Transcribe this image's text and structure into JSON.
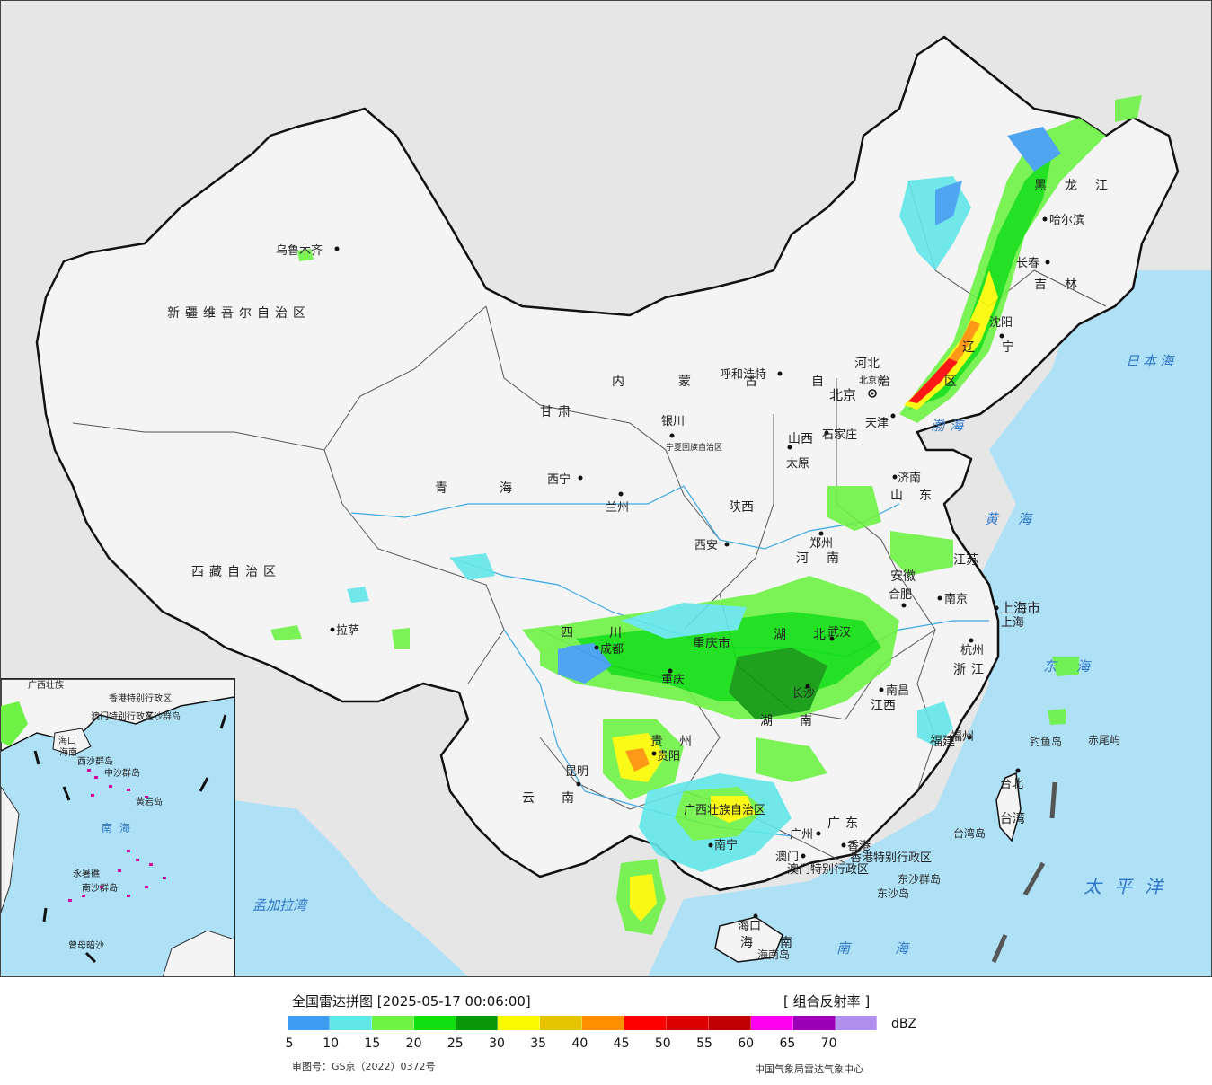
{
  "legend": {
    "title": "全国雷达拼图 [2025-05-17 00:06:00]",
    "product": "[ 组合反射率 ]",
    "unit": "dBZ",
    "ticks": [
      "5",
      "10",
      "15",
      "20",
      "25",
      "30",
      "35",
      "40",
      "45",
      "50",
      "55",
      "60",
      "65",
      "70"
    ],
    "colors": [
      "#3e9df0",
      "#62e6e8",
      "#6ef246",
      "#0fdf0f",
      "#089808",
      "#fcfa00",
      "#e6c400",
      "#ff9000",
      "#ff0000",
      "#dc0000",
      "#c00000",
      "#ff00f0",
      "#9c00b4",
      "#b090ec"
    ],
    "approval": "审图号：GS京（2022）0372号",
    "agency": "中国气象局雷达气象中心"
  },
  "map": {
    "cities": [
      {
        "name": "乌鲁木齐"
      },
      {
        "name": "哈尔滨"
      },
      {
        "name": "长春"
      },
      {
        "name": "沈阳"
      },
      {
        "name": "呼和浩特"
      },
      {
        "name": "北京市"
      },
      {
        "name": "北京"
      },
      {
        "name": "天津"
      },
      {
        "name": "石家庄"
      },
      {
        "name": "太原"
      },
      {
        "name": "银川"
      },
      {
        "name": "西宁"
      },
      {
        "name": "兰州"
      },
      {
        "name": "济南"
      },
      {
        "name": "郑州"
      },
      {
        "name": "西安"
      },
      {
        "name": "合肥"
      },
      {
        "name": "南京"
      },
      {
        "name": "上海市"
      },
      {
        "name": "上海"
      },
      {
        "name": "杭州"
      },
      {
        "name": "武汉"
      },
      {
        "name": "成都"
      },
      {
        "name": "重庆"
      },
      {
        "name": "拉萨"
      },
      {
        "name": "南昌"
      },
      {
        "name": "福州"
      },
      {
        "name": "长沙"
      },
      {
        "name": "贵阳"
      },
      {
        "name": "昆明"
      },
      {
        "name": "南宁"
      },
      {
        "name": "广州"
      },
      {
        "name": "澳门"
      },
      {
        "name": "香港"
      },
      {
        "name": "海口"
      },
      {
        "name": "台北"
      }
    ],
    "provinces": [
      "新疆维吾尔自治区",
      "西藏自治区",
      "青海",
      "甘肃",
      "内蒙古自治区",
      "黑龙江",
      "吉林",
      "辽宁",
      "河北",
      "山西",
      "山东",
      "河南",
      "陕西",
      "宁夏回族自治区",
      "四川",
      "重庆市",
      "湖北",
      "湖南",
      "安徽",
      "江苏",
      "浙江",
      "江西",
      "福建",
      "贵州",
      "云南",
      "广西壮族自治区",
      "广东",
      "海南",
      "台湾",
      "香港特别行政区",
      "澳门特别行政区"
    ],
    "seas": [
      "日本海",
      "渤海",
      "黄海",
      "东海",
      "太平洋",
      "南海",
      "孟加拉湾"
    ],
    "islands": [
      "钓鱼岛",
      "赤尾屿",
      "东沙群岛",
      "东沙岛",
      "台湾岛",
      "海南岛"
    ]
  },
  "inset": {
    "labels": [
      "广西壮族",
      "海口",
      "海南",
      "东沙群岛",
      "香港特别行政区",
      "澳门特别行政区",
      "西沙群岛",
      "中沙群岛",
      "南海",
      "黄岩岛",
      "永暑礁",
      "南沙群岛",
      "曾母暗沙"
    ]
  }
}
